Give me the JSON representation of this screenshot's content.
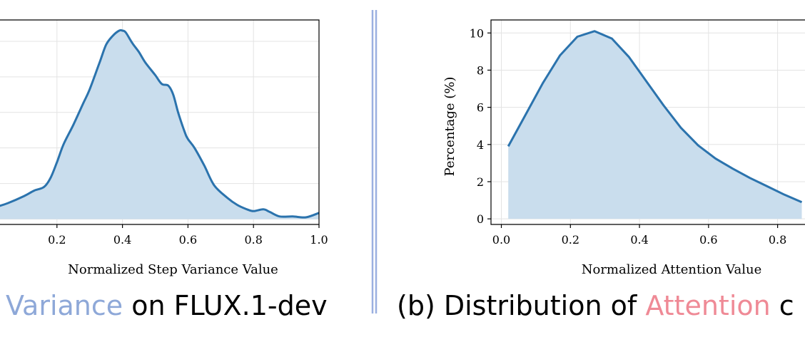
{
  "colors": {
    "line": "#2b73ad",
    "fill": "#c9dded",
    "grid": "#e3e3e3",
    "divider": "#9bb0e0",
    "caption_highlight_a": "#8ea8d8",
    "caption_highlight_b": "#ef8a96"
  },
  "captions": {
    "a": {
      "highlight": "Variance",
      "rest": " on FLUX.1-dev"
    },
    "b": {
      "prefix": "(b)  Distribution of ",
      "highlight": "Attention",
      "rest": " c"
    }
  },
  "chart_data": [
    {
      "type": "area",
      "title": "",
      "xlabel": "Normalized Step Variance Value",
      "ylabel": "",
      "xlim": [
        0.0,
        1.0
      ],
      "x_ticks": [
        "0.2",
        "0.4",
        "0.6",
        "0.8",
        "1.0"
      ],
      "grid": true,
      "series": [
        {
          "x": [
            0.0,
            0.05,
            0.1,
            0.13,
            0.16,
            0.18,
            0.2,
            0.22,
            0.25,
            0.28,
            0.3,
            0.33,
            0.35,
            0.37,
            0.39,
            0.4,
            0.41,
            0.43,
            0.45,
            0.47,
            0.5,
            0.52,
            0.54,
            0.555,
            0.57,
            0.59,
            0.6,
            0.62,
            0.65,
            0.68,
            0.72,
            0.75,
            0.78,
            0.8,
            0.83,
            0.85,
            0.88,
            0.92,
            0.96,
            1.0
          ],
          "y": [
            0.6,
            0.9,
            1.3,
            1.6,
            1.8,
            2.3,
            3.2,
            4.2,
            5.3,
            6.5,
            7.3,
            8.8,
            9.8,
            10.3,
            10.6,
            10.6,
            10.5,
            9.9,
            9.4,
            8.8,
            8.1,
            7.6,
            7.5,
            7.0,
            6.0,
            4.9,
            4.5,
            4.0,
            3.0,
            1.9,
            1.2,
            0.8,
            0.55,
            0.45,
            0.55,
            0.4,
            0.15,
            0.15,
            0.1,
            0.35
          ]
        }
      ]
    },
    {
      "type": "area",
      "title": "",
      "xlabel": "Normalized Attention Value",
      "ylabel": "Percentage (%)",
      "xlim": [
        -0.03,
        0.9
      ],
      "ylim": [
        -0.3,
        10.7
      ],
      "x_ticks": [
        "0.0",
        "0.2",
        "0.4",
        "0.6",
        "0.8"
      ],
      "y_ticks": [
        "0",
        "2",
        "4",
        "6",
        "8",
        "10"
      ],
      "grid": true,
      "series": [
        {
          "x": [
            0.02,
            0.07,
            0.12,
            0.17,
            0.22,
            0.27,
            0.32,
            0.37,
            0.42,
            0.47,
            0.52,
            0.57,
            0.62,
            0.67,
            0.72,
            0.77,
            0.82,
            0.87
          ],
          "y": [
            3.9,
            5.6,
            7.3,
            8.8,
            9.8,
            10.1,
            9.7,
            8.7,
            7.4,
            6.1,
            4.9,
            3.95,
            3.25,
            2.7,
            2.2,
            1.75,
            1.3,
            0.9
          ]
        }
      ]
    }
  ]
}
